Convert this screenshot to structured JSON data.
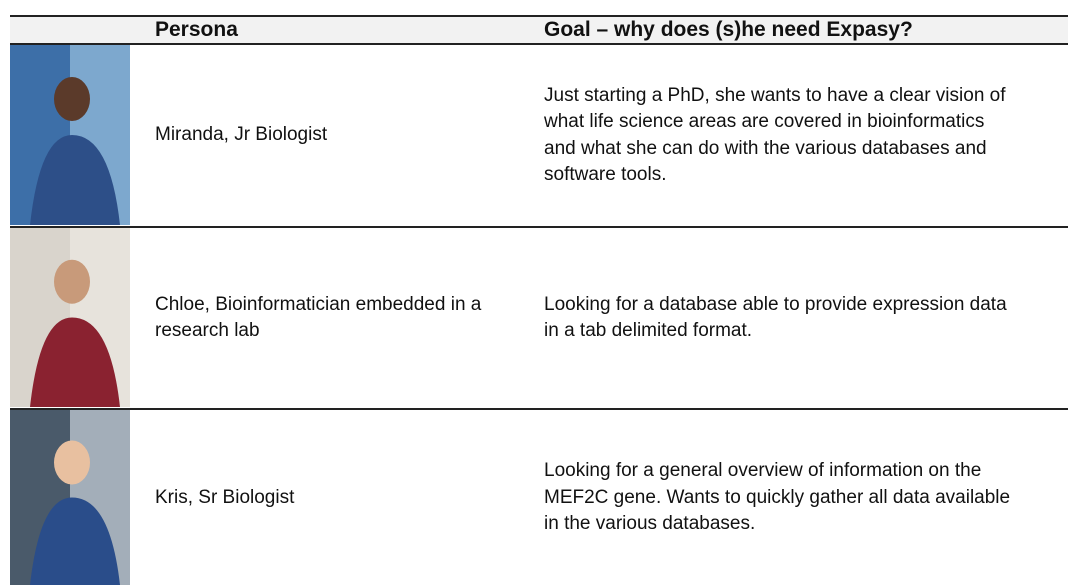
{
  "table": {
    "header": [
      "Persona",
      "Goal – why does (s)he need Expasy?"
    ],
    "rows": [
      {
        "persona": [
          "Miranda, Jr Biologist"
        ],
        "goal": [
          "Just starting a PhD, she wants to have a clear vision of",
          "what life science areas are covered in bioinformatics",
          "and what she can do with the various databases and",
          "software tools."
        ]
      },
      {
        "persona": [
          "Chloe, Bioinformatician embedded in a",
          "research lab"
        ],
        "goal": [
          "Looking for a database able to provide expression data",
          "in a tab delimited format."
        ]
      },
      {
        "persona": [
          "Kris, Sr Biologist"
        ],
        "goal": [
          "Looking for a general overview of information on the",
          "MEF2C gene. Wants to quickly gather all data available",
          "in the various databases."
        ]
      }
    ]
  }
}
